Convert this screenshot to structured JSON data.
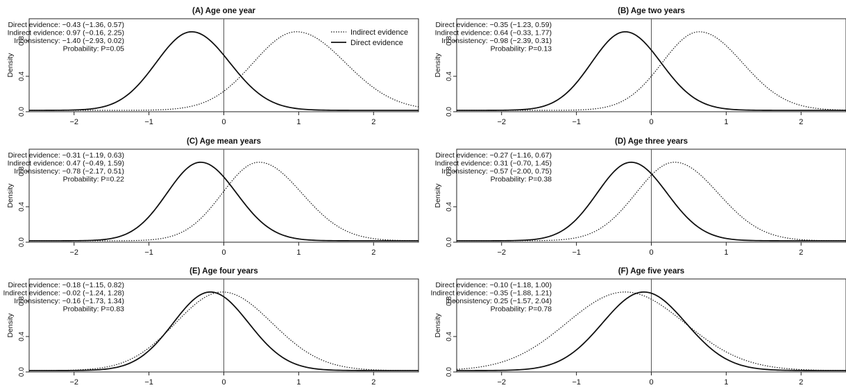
{
  "chart_data": [
    {
      "type": "line",
      "title": "(A) Age one year",
      "ylabel": "Density",
      "xlim": [
        -2.6,
        2.6
      ],
      "ylim": [
        0,
        1.05
      ],
      "xticks": [
        -2,
        -1,
        0,
        1,
        2
      ],
      "yticks": [
        0.0,
        0.4,
        0.8
      ],
      "xtick_labels": [
        "−2",
        "−1",
        "0",
        "1",
        "2"
      ],
      "ytick_labels": [
        "0.0",
        "0.4",
        "0.8"
      ],
      "legend": {
        "placement": "top-right",
        "entries": [
          {
            "label": "Indirect evidence",
            "style": "dotted"
          },
          {
            "label": "Direct evidence",
            "style": "solid"
          }
        ]
      },
      "annotations": [
        "Direct evidence: −0.43 (−1.36, 0.57)",
        "Indirect evidence: 0.97 (−0.16, 2.25)",
        "Inconsistency: −1.40 (−2.93, 0.02)",
        "Probability: P=0.05"
      ],
      "series": [
        {
          "name": "Direct evidence",
          "style": "solid",
          "mean": -0.43,
          "lower": -1.36,
          "upper": 0.57
        },
        {
          "name": "Indirect evidence",
          "style": "dotted",
          "mean": 0.97,
          "lower": -0.16,
          "upper": 2.25
        }
      ]
    },
    {
      "type": "line",
      "title": "(B) Age two years",
      "ylabel": "Density",
      "xlim": [
        -2.6,
        2.6
      ],
      "ylim": [
        0,
        1.05
      ],
      "xticks": [
        -2,
        -1,
        0,
        1,
        2
      ],
      "yticks": [
        0.0,
        0.4,
        0.8
      ],
      "xtick_labels": [
        "−2",
        "−1",
        "0",
        "1",
        "2"
      ],
      "ytick_labels": [
        "0.0",
        "0.4",
        "0.8"
      ],
      "annotations": [
        "Direct evidence: −0.35 (−1.23, 0.59)",
        "Indirect evidence: 0.64 (−0.33, 1.77)",
        "Inconsistency: −0.98 (−2.39, 0.31)",
        "Probability: P=0.13"
      ],
      "series": [
        {
          "name": "Direct evidence",
          "style": "solid",
          "mean": -0.35,
          "lower": -1.23,
          "upper": 0.59
        },
        {
          "name": "Indirect evidence",
          "style": "dotted",
          "mean": 0.64,
          "lower": -0.33,
          "upper": 1.77
        }
      ]
    },
    {
      "type": "line",
      "title": "(C) Age mean years",
      "ylabel": "Density",
      "xlim": [
        -2.6,
        2.6
      ],
      "ylim": [
        0,
        1.05
      ],
      "xticks": [
        -2,
        -1,
        0,
        1,
        2
      ],
      "yticks": [
        0.0,
        0.4,
        0.8
      ],
      "xtick_labels": [
        "−2",
        "−1",
        "0",
        "1",
        "2"
      ],
      "ytick_labels": [
        "0.0",
        "0.4",
        "0.8"
      ],
      "annotations": [
        "Direct evidence: −0.31 (−1.19, 0.63)",
        "Indirect evidence: 0.47 (−0.49, 1.59)",
        "Inconsistency: −0.78 (−2.17, 0.51)",
        "Probability: P=0.22"
      ],
      "series": [
        {
          "name": "Direct evidence",
          "style": "solid",
          "mean": -0.31,
          "lower": -1.19,
          "upper": 0.63
        },
        {
          "name": "Indirect evidence",
          "style": "dotted",
          "mean": 0.47,
          "lower": -0.49,
          "upper": 1.59
        }
      ]
    },
    {
      "type": "line",
      "title": "(D) Age three years",
      "ylabel": "Density",
      "xlim": [
        -2.6,
        2.6
      ],
      "ylim": [
        0,
        1.05
      ],
      "xticks": [
        -2,
        -1,
        0,
        1,
        2
      ],
      "yticks": [
        0.0,
        0.4,
        0.8
      ],
      "xtick_labels": [
        "−2",
        "−1",
        "0",
        "1",
        "2"
      ],
      "ytick_labels": [
        "0.0",
        "0.4",
        "0.8"
      ],
      "annotations": [
        "Direct evidence: −0.27 (−1.16, 0.67)",
        "Indirect evidence: 0.31 (−0.70, 1.45)",
        "Inconsistency: −0.57 (−2.00, 0.75)",
        "Probability: P=0.38"
      ],
      "series": [
        {
          "name": "Direct evidence",
          "style": "solid",
          "mean": -0.27,
          "lower": -1.16,
          "upper": 0.67
        },
        {
          "name": "Indirect evidence",
          "style": "dotted",
          "mean": 0.31,
          "lower": -0.7,
          "upper": 1.45
        }
      ]
    },
    {
      "type": "line",
      "title": "(E) Age four years",
      "ylabel": "Density",
      "xlim": [
        -2.6,
        2.6
      ],
      "ylim": [
        0,
        1.05
      ],
      "xticks": [
        -2,
        -1,
        0,
        1,
        2
      ],
      "yticks": [
        0.0,
        0.4,
        0.8
      ],
      "xtick_labels": [
        "−2",
        "−1",
        "0",
        "1",
        "2"
      ],
      "ytick_labels": [
        "0.0",
        "0.4",
        "0.8"
      ],
      "annotations": [
        "Direct evidence: −0.18 (−1.15, 0.82)",
        "Indirect evidence: −0.02 (−1.24, 1.28)",
        "Inconsistency: −0.16 (−1.73, 1.34)",
        "Probability: P=0.83"
      ],
      "series": [
        {
          "name": "Direct evidence",
          "style": "solid",
          "mean": -0.18,
          "lower": -1.15,
          "upper": 0.82
        },
        {
          "name": "Indirect evidence",
          "style": "dotted",
          "mean": -0.02,
          "lower": -1.24,
          "upper": 1.28
        }
      ]
    },
    {
      "type": "line",
      "title": "(F) Age five years",
      "ylabel": "Density",
      "xlim": [
        -2.6,
        2.6
      ],
      "ylim": [
        0,
        1.05
      ],
      "xticks": [
        -2,
        -1,
        0,
        1,
        2
      ],
      "yticks": [
        0.0,
        0.4,
        0.8
      ],
      "xtick_labels": [
        "−2",
        "−1",
        "0",
        "1",
        "2"
      ],
      "ytick_labels": [
        "0.0",
        "0.4",
        "0.8"
      ],
      "annotations": [
        "Direct evidence: −0.10 (−1.18, 1.00)",
        "Indirect evidence: −0.35 (−1.88, 1.21)",
        "Inconsistency: 0.25 (−1.57, 2.04)",
        "Probability: P=0.78"
      ],
      "series": [
        {
          "name": "Direct evidence",
          "style": "solid",
          "mean": -0.1,
          "lower": -1.18,
          "upper": 1.0
        },
        {
          "name": "Indirect evidence",
          "style": "dotted",
          "mean": -0.35,
          "lower": -1.88,
          "upper": 1.21
        }
      ]
    }
  ]
}
